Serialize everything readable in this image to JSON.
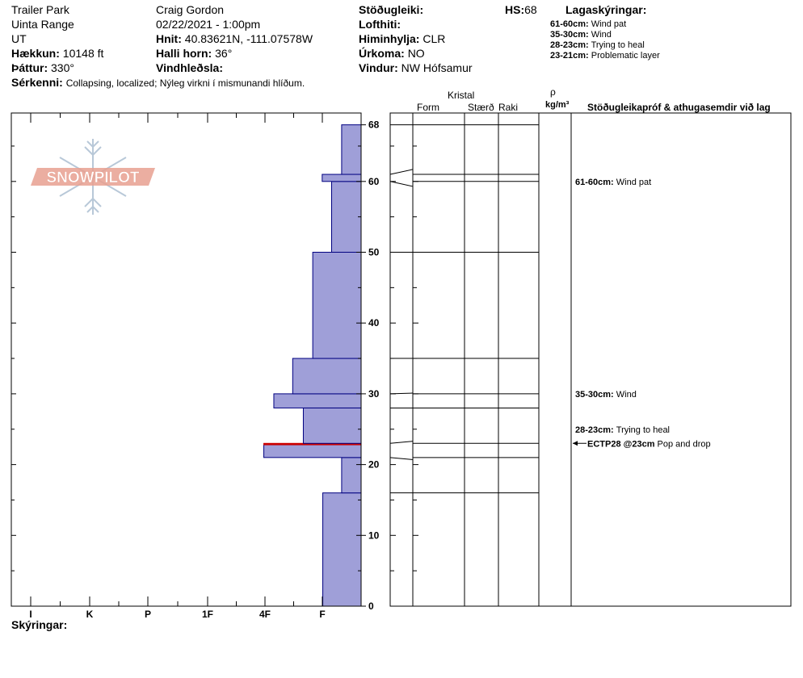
{
  "header": {
    "location": "Trailer Park",
    "range": "Uinta Range",
    "state": "UT",
    "elevation_label": "Hækkun:",
    "elevation_value": "10148 ft",
    "aspect_label": "Þáttur:",
    "aspect_value": "330°",
    "features_label": "Sérkenni:",
    "features_value": "Collapsing, localized;  Nýleg virkni í mismunandi hlíðum.",
    "observer": "Craig Gordon",
    "datetime": "02/22/2021 - 1:00pm",
    "coords_label": "Hnit:",
    "coords_value": "40.83621N, -111.07578W",
    "slope_label": "Halli horn:",
    "slope_value": "36°",
    "wind_loading_label": "Vindhleðsla:",
    "stability_label": "Stöðugleiki:",
    "air_temp_label": "Lofthiti:",
    "sky_label": "Himinhylja:",
    "sky_value": "CLR",
    "precip_label": "Úrkoma:",
    "precip_value": "NO",
    "wind_label": "Vindur:",
    "wind_value": "NW Hófsamur",
    "hs_label": "HS:",
    "hs_value": "68",
    "legend_title": "Lagaskýringar:",
    "legend": [
      {
        "range": "61-60cm:",
        "text": "Wind pat"
      },
      {
        "range": "35-30cm:",
        "text": "Wind"
      },
      {
        "range": "28-23cm:",
        "text": "Trying to heal"
      },
      {
        "range": "23-21cm:",
        "text": "Problematic layer"
      }
    ]
  },
  "logo": {
    "text": "SNOWPILOT"
  },
  "columns": {
    "crystal": "Kristal",
    "form": "Form",
    "size": "Stærð",
    "moisture": "Raki",
    "rho": "ρ",
    "density_unit": "kg/m³",
    "tests": "Stöðugleikapróf & athugasemdir við lag"
  },
  "footer": {
    "notes_label": "Skýringar:"
  },
  "chart_data": {
    "type": "bar",
    "orientation": "horizontal",
    "y_axis_label": "",
    "ylim": [
      0,
      68
    ],
    "y_ticks": [
      "0",
      "10",
      "20",
      "30",
      "40",
      "50",
      "60",
      "68"
    ],
    "hardness_ticks": [
      "I",
      "K",
      "P",
      "1F",
      "4F",
      "F"
    ],
    "layers": [
      {
        "bottom": 0,
        "top": 16,
        "hardness_index": 0.65
      },
      {
        "bottom": 16,
        "top": 21,
        "hardness_index": 0.33
      },
      {
        "bottom": 21,
        "top": 22.8,
        "hardness_index": 1.65
      },
      {
        "bottom": 22.8,
        "top": 23,
        "hardness_index": 1.65,
        "weak": true
      },
      {
        "bottom": 23,
        "top": 28,
        "hardness_index": 0.98
      },
      {
        "bottom": 28,
        "top": 30,
        "hardness_index": 1.48
      },
      {
        "bottom": 30,
        "top": 35,
        "hardness_index": 1.16
      },
      {
        "bottom": 35,
        "top": 50,
        "hardness_index": 0.82
      },
      {
        "bottom": 50,
        "top": 60,
        "hardness_index": 0.5
      },
      {
        "bottom": 60,
        "top": 61,
        "hardness_index": 0.66
      },
      {
        "bottom": 61,
        "top": 68,
        "hardness_index": 0.33
      }
    ],
    "boundaries": [
      16,
      21,
      23,
      28,
      30,
      35,
      50,
      60,
      61,
      68
    ],
    "comments": [
      {
        "depth": 60,
        "range": "61-60cm:",
        "text": "Wind pat"
      },
      {
        "depth": 30,
        "range": "35-30cm:",
        "text": "Wind"
      },
      {
        "depth": 25,
        "range": "28-23cm:",
        "text": "Trying to heal"
      }
    ],
    "tests": [
      {
        "depth": 23,
        "code": "ECTP28 @23cm",
        "text": "Pop and drop"
      }
    ]
  },
  "colors": {
    "layer_fill": "#9f9fd8",
    "layer_stroke": "#000080",
    "weak_layer": "#cc0000",
    "logo": "#e8a090",
    "snowflake": "#b8c8d8"
  }
}
